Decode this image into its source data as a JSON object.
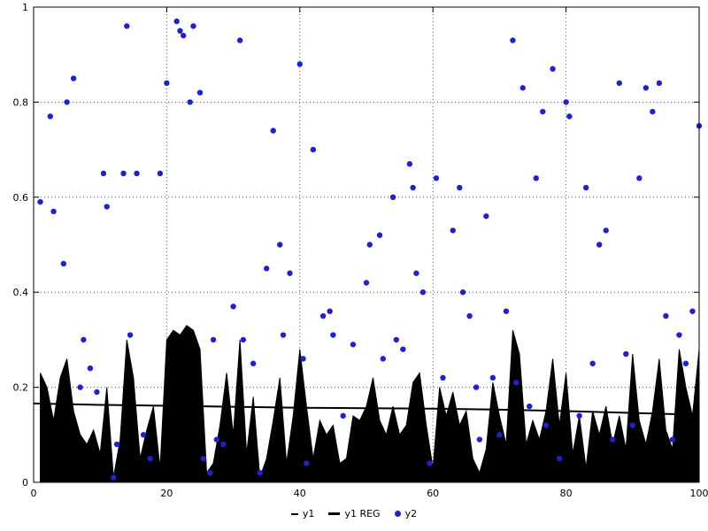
{
  "legend": {
    "y1_label": "y1",
    "y1reg_label": "y1 REG",
    "y2_label": "y2"
  },
  "chart_data": {
    "type": "mixed",
    "title": "",
    "xlabel": "",
    "ylabel": "",
    "xlim": [
      0,
      100
    ],
    "ylim": [
      0,
      1
    ],
    "xticks": [
      0,
      20,
      40,
      60,
      80,
      100
    ],
    "yticks": [
      0,
      0.2,
      0.4,
      0.6,
      0.8,
      1
    ],
    "grid": "dotted",
    "legend_position": "bottom-center",
    "colors": {
      "y1": "#000000",
      "y1_reg": "#000000",
      "y2": "#2121cc",
      "grid": "#555555",
      "border": "#000000"
    },
    "series": [
      {
        "name": "y1",
        "type": "area",
        "color": "#000000",
        "x": [
          1,
          2,
          3,
          4,
          5,
          6,
          7,
          8,
          9,
          10,
          11,
          12,
          13,
          14,
          15,
          16,
          17,
          18,
          19,
          20,
          21,
          22,
          23,
          24,
          25,
          26,
          27,
          28,
          29,
          30,
          31,
          32,
          33,
          34,
          35,
          36,
          37,
          38,
          39,
          40,
          41,
          42,
          43,
          44,
          45,
          46,
          47,
          48,
          49,
          50,
          51,
          52,
          53,
          54,
          55,
          56,
          57,
          58,
          59,
          60,
          61,
          62,
          63,
          64,
          65,
          66,
          67,
          68,
          69,
          70,
          71,
          72,
          73,
          74,
          75,
          76,
          77,
          78,
          79,
          80,
          81,
          82,
          83,
          84,
          85,
          86,
          87,
          88,
          89,
          90,
          91,
          92,
          93,
          94,
          95,
          96,
          97,
          98,
          99,
          100
        ],
        "values": [
          0.23,
          0.2,
          0.13,
          0.22,
          0.26,
          0.15,
          0.1,
          0.08,
          0.11,
          0.06,
          0.2,
          0.01,
          0.09,
          0.3,
          0.22,
          0.05,
          0.11,
          0.16,
          0.03,
          0.3,
          0.32,
          0.31,
          0.33,
          0.32,
          0.28,
          0.02,
          0.04,
          0.12,
          0.23,
          0.1,
          0.3,
          0.06,
          0.18,
          0.01,
          0.05,
          0.13,
          0.22,
          0.04,
          0.14,
          0.28,
          0.16,
          0.05,
          0.13,
          0.1,
          0.12,
          0.04,
          0.05,
          0.14,
          0.13,
          0.16,
          0.22,
          0.13,
          0.1,
          0.16,
          0.1,
          0.12,
          0.21,
          0.23,
          0.12,
          0.03,
          0.2,
          0.14,
          0.19,
          0.12,
          0.15,
          0.05,
          0.02,
          0.07,
          0.21,
          0.14,
          0.08,
          0.32,
          0.27,
          0.08,
          0.13,
          0.09,
          0.15,
          0.26,
          0.12,
          0.23,
          0.06,
          0.14,
          0.03,
          0.15,
          0.1,
          0.16,
          0.08,
          0.14,
          0.07,
          0.27,
          0.13,
          0.08,
          0.15,
          0.26,
          0.11,
          0.07,
          0.28,
          0.2,
          0.14,
          0.28
        ]
      },
      {
        "name": "y1 REG",
        "type": "line",
        "color": "#000000",
        "x": [
          0,
          10,
          20,
          30,
          40,
          50,
          60,
          70,
          80,
          90,
          100
        ],
        "values": [
          0.166,
          0.163,
          0.161,
          0.159,
          0.157,
          0.156,
          0.155,
          0.153,
          0.15,
          0.146,
          0.142
        ]
      },
      {
        "name": "y2",
        "type": "scatter",
        "color": "#2121cc",
        "points": [
          [
            1,
            0.59
          ],
          [
            2.5,
            0.77
          ],
          [
            3,
            0.57
          ],
          [
            4.5,
            0.46
          ],
          [
            5,
            0.8
          ],
          [
            6,
            0.85
          ],
          [
            7,
            0.2
          ],
          [
            7.5,
            0.3
          ],
          [
            8.5,
            0.24
          ],
          [
            9.5,
            0.19
          ],
          [
            10.5,
            0.65
          ],
          [
            11,
            0.58
          ],
          [
            12,
            0.01
          ],
          [
            12.5,
            0.08
          ],
          [
            13.5,
            0.65
          ],
          [
            14,
            0.96
          ],
          [
            14.5,
            0.31
          ],
          [
            15.5,
            0.65
          ],
          [
            16.5,
            0.1
          ],
          [
            17.5,
            0.05
          ],
          [
            19,
            0.65
          ],
          [
            20,
            0.84
          ],
          [
            21.5,
            0.97
          ],
          [
            22,
            0.95
          ],
          [
            22.5,
            0.94
          ],
          [
            23.5,
            0.8
          ],
          [
            24,
            0.96
          ],
          [
            25,
            0.82
          ],
          [
            25.5,
            0.05
          ],
          [
            26.5,
            0.02
          ],
          [
            27,
            0.3
          ],
          [
            27.5,
            0.09
          ],
          [
            28.5,
            0.08
          ],
          [
            30,
            0.37
          ],
          [
            31,
            0.93
          ],
          [
            31.5,
            0.3
          ],
          [
            33,
            0.25
          ],
          [
            34,
            0.02
          ],
          [
            35,
            0.45
          ],
          [
            36,
            0.74
          ],
          [
            37,
            0.5
          ],
          [
            37.5,
            0.31
          ],
          [
            38.5,
            0.44
          ],
          [
            40,
            0.88
          ],
          [
            40.5,
            0.26
          ],
          [
            41,
            0.04
          ],
          [
            42,
            0.7
          ],
          [
            43.5,
            0.35
          ],
          [
            44.5,
            0.36
          ],
          [
            45,
            0.31
          ],
          [
            46.5,
            0.14
          ],
          [
            48,
            0.29
          ],
          [
            50,
            0.42
          ],
          [
            50.5,
            0.5
          ],
          [
            52,
            0.52
          ],
          [
            52.5,
            0.26
          ],
          [
            54,
            0.6
          ],
          [
            54.5,
            0.3
          ],
          [
            55.5,
            0.28
          ],
          [
            56.5,
            0.67
          ],
          [
            57,
            0.62
          ],
          [
            57.5,
            0.44
          ],
          [
            58.5,
            0.4
          ],
          [
            59.5,
            0.04
          ],
          [
            60.5,
            0.64
          ],
          [
            61.5,
            0.22
          ],
          [
            63,
            0.53
          ],
          [
            64,
            0.62
          ],
          [
            64.5,
            0.4
          ],
          [
            65.5,
            0.35
          ],
          [
            66.5,
            0.2
          ],
          [
            67,
            0.09
          ],
          [
            68,
            0.56
          ],
          [
            69,
            0.22
          ],
          [
            70,
            0.1
          ],
          [
            71,
            0.36
          ],
          [
            72,
            0.93
          ],
          [
            72.5,
            0.21
          ],
          [
            73.5,
            0.83
          ],
          [
            74.5,
            0.16
          ],
          [
            75.5,
            0.64
          ],
          [
            76.5,
            0.78
          ],
          [
            77,
            0.12
          ],
          [
            78,
            0.87
          ],
          [
            79,
            0.05
          ],
          [
            80,
            0.8
          ],
          [
            80.5,
            0.77
          ],
          [
            82,
            0.14
          ],
          [
            83,
            0.62
          ],
          [
            84,
            0.25
          ],
          [
            85,
            0.5
          ],
          [
            86,
            0.53
          ],
          [
            87,
            0.09
          ],
          [
            88,
            0.84
          ],
          [
            89,
            0.27
          ],
          [
            90,
            0.12
          ],
          [
            91,
            0.64
          ],
          [
            92,
            0.83
          ],
          [
            93,
            0.78
          ],
          [
            94,
            0.84
          ],
          [
            95,
            0.35
          ],
          [
            96,
            0.09
          ],
          [
            97,
            0.31
          ],
          [
            98,
            0.25
          ],
          [
            99,
            0.36
          ],
          [
            100,
            0.75
          ]
        ]
      }
    ]
  }
}
